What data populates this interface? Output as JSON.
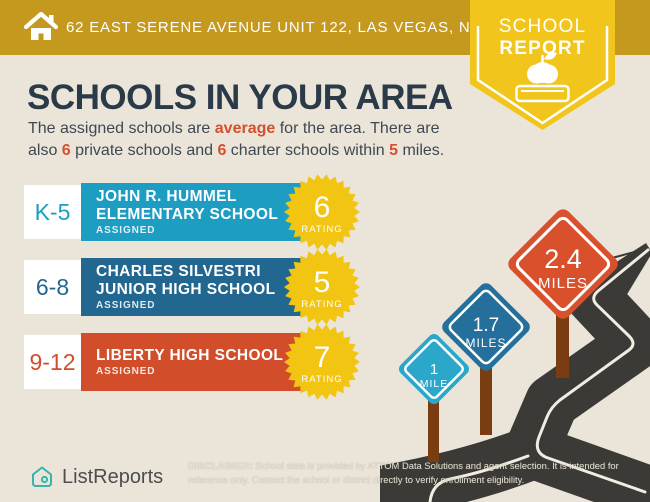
{
  "header": {
    "address": "62 EAST SERENE AVENUE UNIT 122, LAS VEGAS, NV 89123"
  },
  "badge": {
    "line1": "SCHOOL",
    "line2": "REPORT"
  },
  "title": "SCHOOLS IN YOUR AREA",
  "intro": {
    "part1": "The assigned schools are ",
    "highlight1": "average",
    "part2": " for the area. There are also ",
    "highlight2": "6",
    "part3": " private schools and ",
    "highlight3": "6",
    "part4": " charter schools within ",
    "highlight4": "5",
    "part5": " miles."
  },
  "schools": [
    {
      "grades": "K-5",
      "name_line1": "JOHN R. HUMMEL",
      "name_line2": "ELEMENTARY SCHOOL",
      "status": "ASSIGNED",
      "rating": "6",
      "rating_label": "RATING",
      "color": "#1E9DC2"
    },
    {
      "grades": "6-8",
      "name_line1": "CHARLES SILVESTRI",
      "name_line2": "JUNIOR HIGH SCHOOL",
      "status": "ASSIGNED",
      "rating": "5",
      "rating_label": "RATING",
      "color": "#21678F"
    },
    {
      "grades": "9-12",
      "name_line1": "LIBERTY HIGH SCHOOL",
      "name_line2": "",
      "status": "ASSIGNED",
      "rating": "7",
      "rating_label": "RATING",
      "color": "#D24E2B"
    }
  ],
  "road_signs": [
    {
      "distance": "1",
      "unit": "MILE",
      "color": "#2AA7C9"
    },
    {
      "distance": "1.7",
      "unit": "MILES",
      "color": "#256F9C"
    },
    {
      "distance": "2.4",
      "unit": "MILES",
      "color": "#D8502C"
    }
  ],
  "footer": {
    "brand": "ListReports",
    "disclaimer_label": "DISCLAIMER:",
    "disclaimer_text": " School data is provided by ATTOM Data Solutions and agent selection. It is intended for reference only. Contact the school or district directly to verify enrollment eligibility."
  },
  "colors": {
    "header_gold": "#C5981E",
    "badge_yellow": "#F1C51C",
    "starburst_yellow": "#F2C513",
    "background_cream": "#EBE5D9",
    "title_navy": "#2B3A48",
    "accent_orange": "#D4502E",
    "road_dark": "#3B3A37",
    "post_brown": "#7A3D11",
    "brand_teal": "#35B5AD"
  }
}
